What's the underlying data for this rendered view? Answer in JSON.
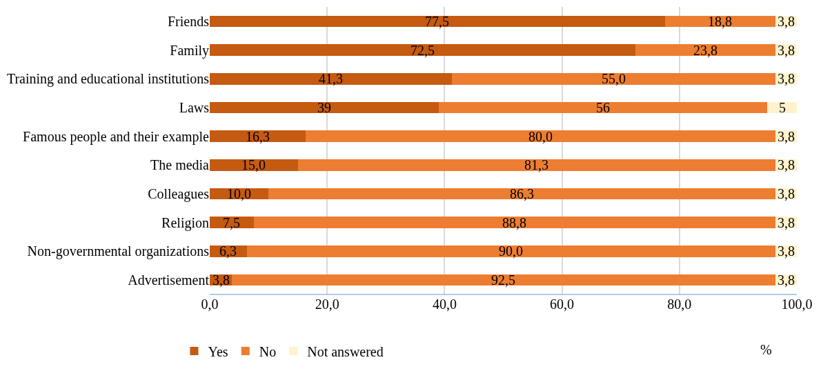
{
  "chart_data": {
    "type": "bar",
    "orientation": "horizontal",
    "stacked": true,
    "xlabel": "%",
    "categories": [
      "Friends",
      "Family",
      "Training and educational institutions",
      "Laws",
      "Famous people and their example",
      "The media",
      "Colleagues",
      "Religion",
      "Non-governmental organizations",
      "Advertisement"
    ],
    "series": [
      {
        "name": "Yes",
        "color": "#c55a11",
        "values": [
          77.5,
          72.5,
          41.3,
          39,
          16.3,
          15.0,
          10.0,
          7.5,
          6.3,
          3.8
        ],
        "value_labels": [
          "77,5",
          "72,5",
          "41,3",
          "39",
          "16,3",
          "15,0",
          "10,0",
          "7,5",
          "6,3",
          "3,8"
        ]
      },
      {
        "name": "No",
        "color": "#ed7d31",
        "values": [
          18.8,
          23.8,
          55.0,
          56,
          80.0,
          81.3,
          86.3,
          88.8,
          90.0,
          92.5
        ],
        "value_labels": [
          "18,8",
          "23,8",
          "55,0",
          "56",
          "80,0",
          "81,3",
          "86,3",
          "88,8",
          "90,0",
          "92,5"
        ]
      },
      {
        "name": "Not answered",
        "color": "#fff2cc",
        "values": [
          3.8,
          3.8,
          3.8,
          5,
          3.8,
          3.8,
          3.8,
          3.8,
          3.8,
          3.8
        ],
        "value_labels": [
          "3,8",
          "3,8",
          "3,8",
          "5",
          "3,8",
          "3,8",
          "3,8",
          "3,8",
          "3,8",
          "3,8"
        ]
      }
    ],
    "xlim": [
      0,
      100
    ],
    "xticks": [
      {
        "value": 0,
        "label": "0,0"
      },
      {
        "value": 20,
        "label": "20,0"
      },
      {
        "value": 40,
        "label": "40,0"
      },
      {
        "value": 60,
        "label": "60,0"
      },
      {
        "value": 80,
        "label": "80,0"
      },
      {
        "value": 100,
        "label": "100,0"
      }
    ],
    "grid": "x",
    "legend": "bottom left"
  }
}
